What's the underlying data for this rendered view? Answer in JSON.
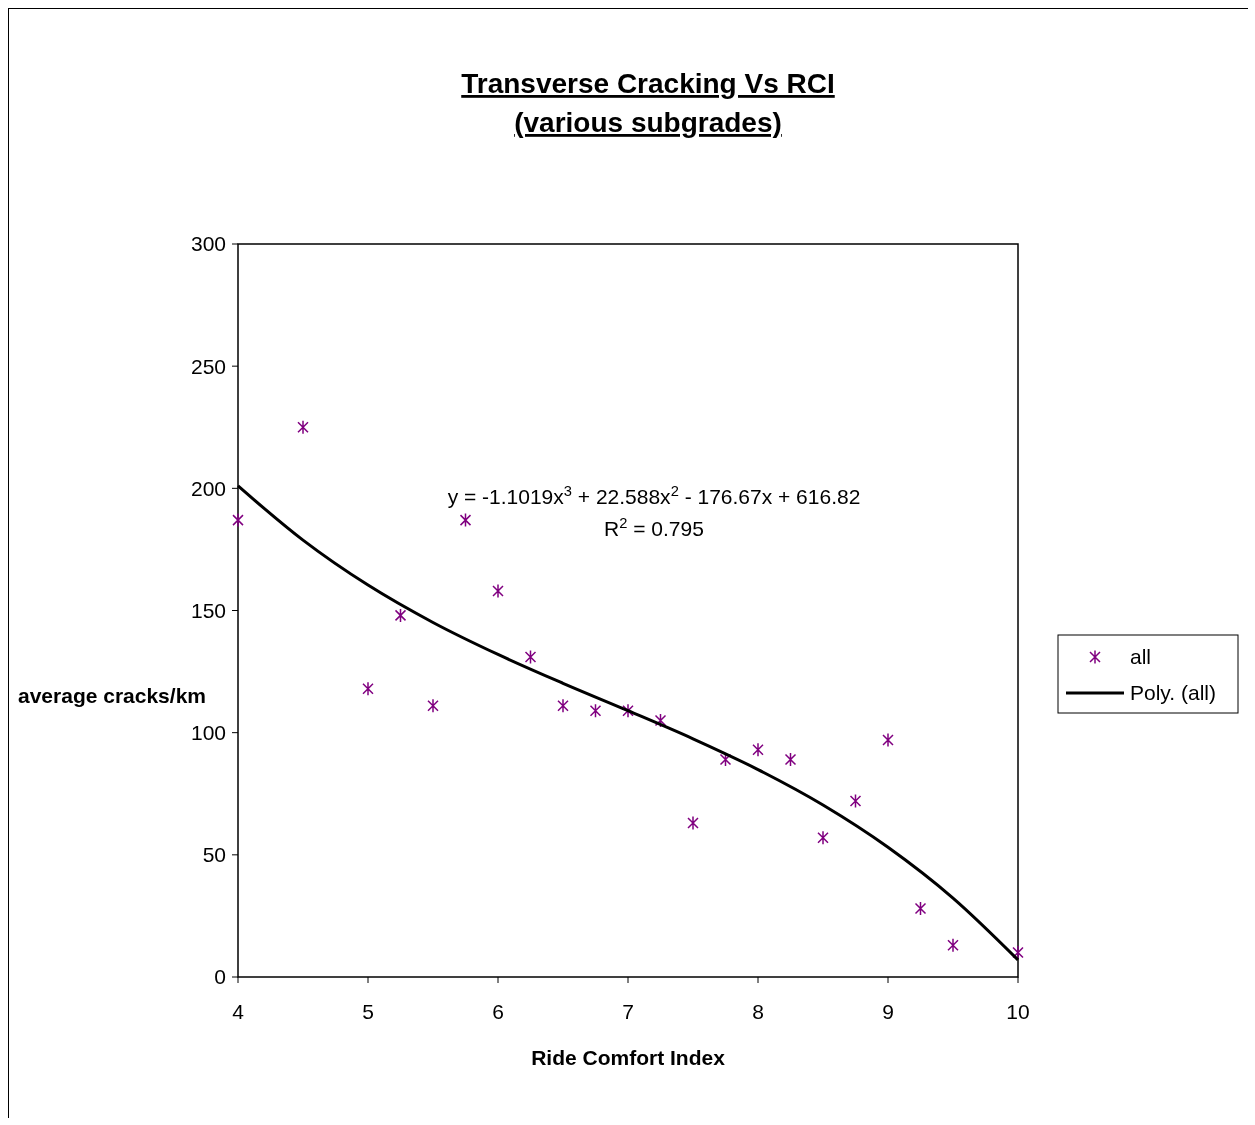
{
  "chart_data": {
    "type": "scatter",
    "title": "Transverse Cracking Vs RCI",
    "subtitle": "(various subgrades)",
    "xlabel": "Ride Comfort Index",
    "ylabel": "average cracks/km",
    "xlim": [
      4,
      10
    ],
    "xticks": [
      4,
      5,
      6,
      7,
      8,
      9,
      10
    ],
    "ylim": [
      0,
      300
    ],
    "yticks": [
      0,
      50,
      100,
      150,
      200,
      250,
      300
    ],
    "grid": false,
    "legend": "right",
    "annotations": [
      "y = -1.1019x$^{3}$ + 22.588x$^{2}$ - 176.67x + 616.82",
      "R$^{2}$ = 0.795"
    ],
    "series": [
      {
        "name": "all",
        "color": "#800080",
        "marker": "cross",
        "x": [
          4,
          4.5,
          5,
          5.25,
          5.5,
          5.75,
          6,
          6.25,
          6.5,
          6.75,
          7,
          7.25,
          7.5,
          7.75,
          8,
          8.25,
          8.5,
          8.75,
          9,
          9.25,
          9.5,
          10
        ],
        "values": [
          187,
          225,
          118,
          148,
          111,
          187,
          158,
          131,
          111,
          109,
          109,
          105,
          63,
          89,
          93,
          89,
          57,
          72,
          97,
          28,
          13,
          10
        ]
      },
      {
        "name": "Poly. (all)",
        "type": "line",
        "color": "#000000",
        "marker": "none",
        "line_style": "solid",
        "x": [
          4,
          4.5,
          5,
          5.5,
          6,
          6.5,
          7,
          7.5,
          8,
          8.5,
          9,
          9.5,
          10
        ],
        "values": [
          201.0,
          178.8,
          160.4,
          145.1,
          132.0,
          120.2,
          109.0,
          97.5,
          84.9,
          70.4,
          53.1,
          32.3,
          7.0
        ]
      }
    ]
  }
}
